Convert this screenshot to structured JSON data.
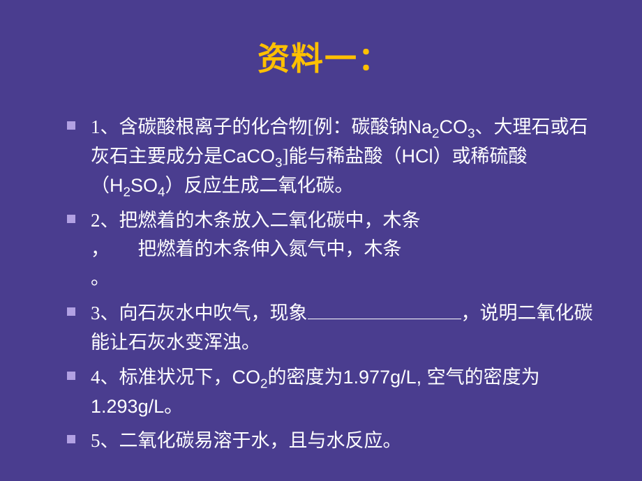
{
  "colors": {
    "background": "#4a3d8f",
    "title": "#ffc000",
    "text": "#ffffff",
    "bullet": "#b2a1e3",
    "underline": "#ffffff"
  },
  "title": "资料一：",
  "title_fontsize": 46,
  "body_fontsize": 27,
  "items": [
    {
      "pre": "1、含碳酸根离子的化合物[例：碳酸钠",
      "f1": "Na",
      "s1": "2",
      "f2": "CO",
      "s2": "3",
      "mid1": "、大理石或石灰石主要成分是",
      "f3": "CaCO",
      "s3": "3",
      "mid2": "]能与稀盐酸（",
      "f4": "HCl",
      "mid3": "）或稀硫酸（",
      "f5": "H",
      "s5": "2",
      "f6": "SO",
      "s6": "4",
      "post": "）反应生成二氧化碳。"
    },
    {
      "pre": "2、把燃着的木条放入二氧化碳中，木条",
      "gap1_width": 150,
      "mid": "，　　把燃着的木条伸入氮气中，木条",
      "gap2_width": 150,
      "post": "。"
    },
    {
      "pre": "3、向石灰水中吹气，现象",
      "blank_width": 220,
      "post": "，说明二氧化碳能让石灰水变浑浊。"
    },
    {
      "pre": "4、标准状况下，",
      "f1": "CO",
      "s1": "2",
      "mid1": "的密度为",
      "v1": "1.977g/L, ",
      "mid2": "空气的密度为",
      "v2": "1.293g/L",
      "post": "。"
    },
    {
      "text": "5、二氧化碳易溶于水，且与水反应。"
    }
  ]
}
